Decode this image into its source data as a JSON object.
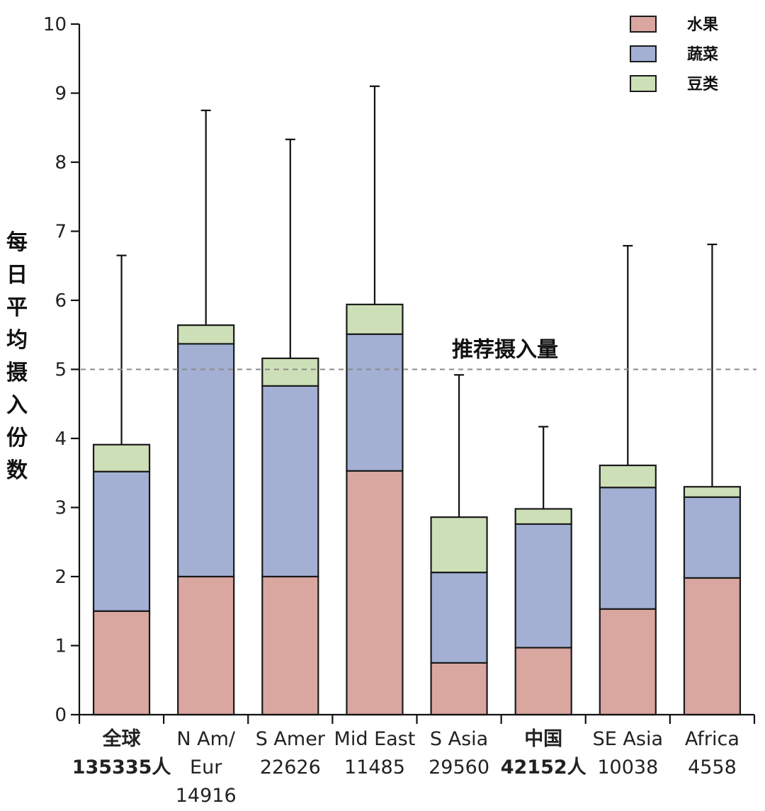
{
  "chart_data": {
    "type": "bar",
    "stacked": true,
    "ylim": [
      0,
      10
    ],
    "yticks": [
      0,
      1,
      2,
      3,
      4,
      5,
      6,
      7,
      8,
      9,
      10
    ],
    "ylabel": "每日平均摄入份数",
    "grid": false,
    "legend_position": "top-right",
    "reference_line": {
      "value": 5,
      "label": "推荐摄入量"
    },
    "categories": [
      {
        "lines": [
          "全球",
          "135335人"
        ],
        "bold": true
      },
      {
        "lines": [
          "N Am/",
          "Eur",
          "14916"
        ],
        "bold": false
      },
      {
        "lines": [
          "S Amer",
          "22626"
        ],
        "bold": false
      },
      {
        "lines": [
          "Mid East",
          "11485"
        ],
        "bold": false
      },
      {
        "lines": [
          "S Asia",
          "29560"
        ],
        "bold": false
      },
      {
        "lines": [
          "中国",
          "42152人"
        ],
        "bold": true
      },
      {
        "lines": [
          "SE Asia",
          "10038"
        ],
        "bold": false
      },
      {
        "lines": [
          "Africa",
          "4558"
        ],
        "bold": false
      }
    ],
    "series": [
      {
        "name": "水果",
        "color": "#d9a6a0",
        "values": [
          1.5,
          2.0,
          2.0,
          3.53,
          0.75,
          0.97,
          1.53,
          1.98
        ]
      },
      {
        "name": "蔬菜",
        "color": "#a3b0d4",
        "values": [
          2.02,
          3.37,
          2.76,
          1.98,
          1.31,
          1.79,
          1.76,
          1.17
        ]
      },
      {
        "name": "豆类",
        "color": "#cddfb7",
        "values": [
          0.39,
          0.27,
          0.4,
          0.43,
          0.8,
          0.22,
          0.32,
          0.15
        ]
      }
    ],
    "error_bar_tops": [
      6.65,
      8.75,
      8.33,
      9.1,
      4.92,
      4.17,
      6.79,
      6.81
    ]
  }
}
